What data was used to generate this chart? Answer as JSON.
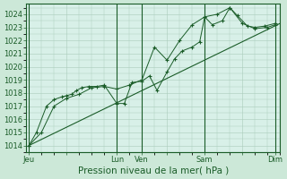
{
  "bg_color": "#cce8d8",
  "plot_bg_color": "#d8f0e8",
  "grid_color": "#aaccbb",
  "line_color": "#1a5c28",
  "ylim": [
    1013.5,
    1024.8
  ],
  "yticks": [
    1014,
    1015,
    1016,
    1017,
    1018,
    1019,
    1020,
    1021,
    1022,
    1023,
    1024
  ],
  "xlabel": "Pression niveau de la mer( hPa )",
  "xlabel_fontsize": 7.5,
  "tick_fontsize": 6,
  "xtick_labels": [
    "Jeu",
    "",
    "Lun",
    "Ven",
    "",
    "Sam",
    "",
    "Dim"
  ],
  "xtick_positions": [
    0,
    1.5,
    3.5,
    4.5,
    5.5,
    7.0,
    8.5,
    9.8
  ],
  "vlines": [
    0,
    3.5,
    4.5,
    7.0,
    9.8
  ],
  "xlim": [
    -0.1,
    10.0
  ],
  "trend_x": [
    0,
    10.0
  ],
  "trend_y": [
    1014.0,
    1023.3
  ],
  "line1_x": [
    0,
    0.3,
    0.7,
    1.0,
    1.3,
    1.5,
    1.7,
    1.9,
    2.1,
    2.4,
    2.7,
    3.0,
    3.5,
    3.8,
    4.1,
    4.5,
    4.8,
    5.1,
    5.5,
    5.8,
    6.1,
    6.5,
    6.8,
    7.0,
    7.3,
    7.7,
    8.0,
    8.3,
    8.7,
    9.0,
    9.4,
    9.8
  ],
  "line1_y": [
    1014.0,
    1015.0,
    1017.0,
    1017.5,
    1017.7,
    1017.8,
    1017.9,
    1018.2,
    1018.4,
    1018.5,
    1018.5,
    1018.6,
    1017.2,
    1017.2,
    1018.8,
    1018.9,
    1019.3,
    1018.2,
    1019.6,
    1020.6,
    1021.2,
    1021.5,
    1021.9,
    1023.8,
    1023.2,
    1023.5,
    1024.5,
    1023.9,
    1023.1,
    1023.0,
    1023.1,
    1023.3
  ],
  "line2_x": [
    0,
    0.5,
    1.0,
    1.5,
    2.0,
    2.5,
    3.0,
    3.5,
    4.0,
    4.5,
    5.0,
    5.5,
    6.0,
    6.5,
    7.0,
    7.5,
    8.0,
    8.5,
    9.0,
    9.5,
    9.8
  ],
  "line2_y": [
    1014.0,
    1015.0,
    1017.0,
    1017.6,
    1017.9,
    1018.4,
    1018.5,
    1018.3,
    1018.6,
    1019.0,
    1021.5,
    1020.5,
    1022.0,
    1023.2,
    1023.8,
    1024.0,
    1024.5,
    1023.3,
    1022.9,
    1023.0,
    1023.2
  ]
}
